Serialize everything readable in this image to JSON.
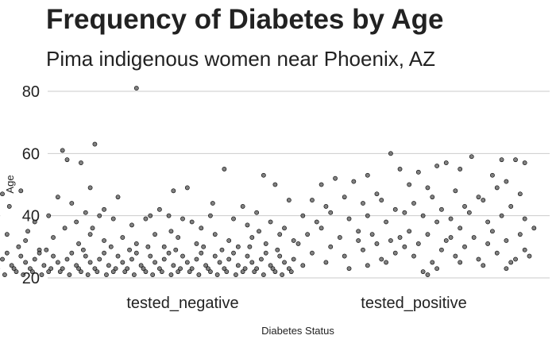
{
  "chart_data": {
    "type": "scatter",
    "title": "Frequency of Diabetes by Age",
    "subtitle": "Pima indigenous women near Phoenix, AZ",
    "xlabel": "Diabetes Status",
    "ylabel": "Age",
    "categories": [
      "tested_negative",
      "tested_positive"
    ],
    "ylim": [
      20,
      82
    ],
    "yticks": [
      20,
      40,
      60,
      80
    ],
    "grid": "horizontal",
    "series": [
      {
        "name": "tested_negative",
        "points": [
          [
            -0.34,
            60
          ],
          [
            -0.02,
            61
          ],
          [
            0.0,
            58
          ],
          [
            0.06,
            57
          ],
          [
            0.12,
            63
          ],
          [
            0.3,
            81
          ],
          [
            0.46,
            48
          ],
          [
            0.52,
            49
          ],
          [
            0.68,
            55
          ],
          [
            0.85,
            53
          ],
          [
            0.9,
            50
          ],
          [
            0.96,
            45
          ],
          [
            -0.28,
            47
          ],
          [
            -0.2,
            48
          ],
          [
            -0.25,
            43
          ],
          [
            -0.04,
            46
          ],
          [
            0.02,
            44
          ],
          [
            0.1,
            49
          ],
          [
            0.16,
            42
          ],
          [
            0.22,
            46
          ],
          [
            0.36,
            40
          ],
          [
            0.4,
            42
          ],
          [
            0.5,
            39
          ],
          [
            0.62,
            40
          ],
          [
            0.76,
            43
          ],
          [
            0.82,
            41
          ],
          [
            -0.4,
            33
          ],
          [
            -0.36,
            39
          ],
          [
            -0.3,
            40
          ],
          [
            -0.14,
            38
          ],
          [
            -0.08,
            40
          ],
          [
            -0.01,
            36
          ],
          [
            0.04,
            38
          ],
          [
            0.08,
            41
          ],
          [
            0.14,
            40
          ],
          [
            0.2,
            39
          ],
          [
            0.28,
            37
          ],
          [
            0.34,
            39
          ],
          [
            0.44,
            40
          ],
          [
            0.54,
            38
          ],
          [
            0.58,
            36
          ],
          [
            0.72,
            39
          ],
          [
            0.78,
            37
          ],
          [
            0.88,
            38
          ],
          [
            0.94,
            36
          ],
          [
            -0.42,
            30
          ],
          [
            -0.38,
            33
          ],
          [
            -0.33,
            31
          ],
          [
            -0.26,
            34
          ],
          [
            -0.18,
            32
          ],
          [
            -0.12,
            29
          ],
          [
            -0.06,
            33
          ],
          [
            0.05,
            31
          ],
          [
            0.1,
            34
          ],
          [
            0.16,
            32
          ],
          [
            0.24,
            33
          ],
          [
            0.3,
            31
          ],
          [
            0.38,
            34
          ],
          [
            0.42,
            30
          ],
          [
            0.48,
            33
          ],
          [
            0.56,
            31
          ],
          [
            0.64,
            34
          ],
          [
            0.7,
            32
          ],
          [
            0.74,
            30
          ],
          [
            0.8,
            33
          ],
          [
            0.86,
            31
          ],
          [
            0.92,
            34
          ],
          [
            0.98,
            32
          ],
          [
            -0.41,
            26
          ],
          [
            -0.39,
            28
          ],
          [
            -0.37,
            24
          ],
          [
            -0.35,
            27
          ],
          [
            -0.32,
            25
          ],
          [
            -0.3,
            23
          ],
          [
            -0.28,
            26
          ],
          [
            -0.26,
            28
          ],
          [
            -0.24,
            24
          ],
          [
            -0.22,
            22
          ],
          [
            -0.2,
            27
          ],
          [
            -0.18,
            25
          ],
          [
            -0.16,
            23
          ],
          [
            -0.14,
            26
          ],
          [
            -0.12,
            28
          ],
          [
            -0.1,
            24
          ],
          [
            -0.08,
            22
          ],
          [
            -0.06,
            27
          ],
          [
            -0.04,
            25
          ],
          [
            -0.02,
            23
          ],
          [
            0.0,
            26
          ],
          [
            0.02,
            28
          ],
          [
            0.04,
            24
          ],
          [
            0.06,
            22
          ],
          [
            0.08,
            27
          ],
          [
            0.1,
            25
          ],
          [
            0.12,
            23
          ],
          [
            0.14,
            26
          ],
          [
            0.16,
            28
          ],
          [
            0.18,
            24
          ],
          [
            0.2,
            22
          ],
          [
            0.22,
            27
          ],
          [
            0.24,
            25
          ],
          [
            0.26,
            23
          ],
          [
            0.28,
            26
          ],
          [
            0.3,
            28
          ],
          [
            0.32,
            24
          ],
          [
            0.34,
            22
          ],
          [
            0.36,
            27
          ],
          [
            0.38,
            25
          ],
          [
            0.4,
            23
          ],
          [
            0.42,
            26
          ],
          [
            0.44,
            28
          ],
          [
            0.46,
            24
          ],
          [
            0.48,
            22
          ],
          [
            0.5,
            27
          ],
          [
            0.52,
            25
          ],
          [
            0.54,
            23
          ],
          [
            0.56,
            26
          ],
          [
            0.58,
            28
          ],
          [
            0.6,
            24
          ],
          [
            0.62,
            22
          ],
          [
            0.64,
            27
          ],
          [
            0.66,
            25
          ],
          [
            0.68,
            23
          ],
          [
            0.7,
            26
          ],
          [
            0.72,
            28
          ],
          [
            0.74,
            24
          ],
          [
            0.76,
            22
          ],
          [
            0.78,
            27
          ],
          [
            0.8,
            25
          ],
          [
            0.82,
            23
          ],
          [
            0.84,
            26
          ],
          [
            0.86,
            28
          ],
          [
            0.88,
            24
          ],
          [
            0.9,
            22
          ],
          [
            0.92,
            27
          ],
          [
            0.94,
            25
          ],
          [
            0.96,
            23
          ],
          [
            0.98,
            26
          ],
          [
            -0.4,
            22
          ],
          [
            -0.36,
            21
          ],
          [
            -0.31,
            22
          ],
          [
            -0.27,
            21
          ],
          [
            -0.23,
            23
          ],
          [
            -0.19,
            21
          ],
          [
            -0.15,
            22
          ],
          [
            -0.11,
            21
          ],
          [
            -0.07,
            23
          ],
          [
            -0.03,
            22
          ],
          [
            0.01,
            21
          ],
          [
            0.05,
            23
          ],
          [
            0.09,
            21
          ],
          [
            0.13,
            22
          ],
          [
            0.17,
            21
          ],
          [
            0.21,
            23
          ],
          [
            0.25,
            22
          ],
          [
            0.29,
            21
          ],
          [
            0.33,
            23
          ],
          [
            0.37,
            21
          ],
          [
            0.41,
            22
          ],
          [
            0.45,
            21
          ],
          [
            0.49,
            23
          ],
          [
            0.53,
            22
          ],
          [
            0.57,
            21
          ],
          [
            0.61,
            23
          ],
          [
            0.65,
            21
          ],
          [
            0.69,
            22
          ],
          [
            0.73,
            21
          ],
          [
            0.77,
            23
          ],
          [
            0.81,
            22
          ],
          [
            0.85,
            21
          ],
          [
            0.89,
            23
          ],
          [
            0.93,
            21
          ],
          [
            0.97,
            22
          ],
          [
            -0.33,
            29
          ],
          [
            -0.21,
            30
          ],
          [
            -0.09,
            29
          ],
          [
            0.07,
            29
          ],
          [
            0.19,
            30
          ],
          [
            0.27,
            29
          ],
          [
            0.35,
            30
          ],
          [
            0.47,
            29
          ],
          [
            0.59,
            30
          ],
          [
            0.67,
            29
          ],
          [
            0.79,
            30
          ],
          [
            0.91,
            29
          ],
          [
            -0.17,
            35
          ],
          [
            0.11,
            36
          ],
          [
            0.45,
            35
          ],
          [
            0.63,
            44
          ],
          [
            0.83,
            35
          ]
        ]
      },
      {
        "name": "tested_positive",
        "points": [
          [
            1.4,
            60
          ],
          [
            1.75,
            59
          ],
          [
            1.6,
            56
          ],
          [
            1.88,
            58
          ],
          [
            1.94,
            58
          ],
          [
            1.98,
            57
          ],
          [
            1.3,
            53
          ],
          [
            1.44,
            55
          ],
          [
            1.52,
            54
          ],
          [
            1.64,
            57
          ],
          [
            1.7,
            55
          ],
          [
            1.84,
            53
          ],
          [
            1.9,
            51
          ],
          [
            1.1,
            50
          ],
          [
            1.16,
            52
          ],
          [
            1.24,
            51
          ],
          [
            1.34,
            47
          ],
          [
            1.48,
            50
          ],
          [
            1.56,
            49
          ],
          [
            1.68,
            48
          ],
          [
            1.78,
            46
          ],
          [
            1.86,
            49
          ],
          [
            1.96,
            47
          ],
          [
            1.06,
            45
          ],
          [
            1.12,
            43
          ],
          [
            1.2,
            46
          ],
          [
            1.28,
            44
          ],
          [
            1.36,
            45
          ],
          [
            1.42,
            42
          ],
          [
            1.5,
            44
          ],
          [
            1.58,
            46
          ],
          [
            1.62,
            42
          ],
          [
            1.72,
            43
          ],
          [
            1.8,
            45
          ],
          [
            1.92,
            43
          ],
          [
            1.02,
            40
          ],
          [
            1.08,
            38
          ],
          [
            1.14,
            41
          ],
          [
            1.22,
            39
          ],
          [
            1.3,
            40
          ],
          [
            1.38,
            38
          ],
          [
            1.46,
            41
          ],
          [
            1.54,
            40
          ],
          [
            1.6,
            38
          ],
          [
            1.66,
            39
          ],
          [
            1.74,
            41
          ],
          [
            1.82,
            38
          ],
          [
            1.88,
            40
          ],
          [
            1.98,
            39
          ],
          [
            1.04,
            34
          ],
          [
            1.1,
            36
          ],
          [
            1.18,
            33
          ],
          [
            1.26,
            35
          ],
          [
            1.32,
            34
          ],
          [
            1.4,
            32
          ],
          [
            1.44,
            33
          ],
          [
            1.48,
            35
          ],
          [
            1.52,
            31
          ],
          [
            1.56,
            34
          ],
          [
            1.64,
            32
          ],
          [
            1.7,
            36
          ],
          [
            1.76,
            33
          ],
          [
            1.84,
            35
          ],
          [
            1.9,
            32
          ],
          [
            1.96,
            34
          ],
          [
            2.02,
            36
          ],
          [
            1.0,
            31
          ],
          [
            1.06,
            28
          ],
          [
            1.14,
            30
          ],
          [
            1.2,
            27
          ],
          [
            1.28,
            29
          ],
          [
            1.36,
            26
          ],
          [
            1.42,
            28
          ],
          [
            1.46,
            30
          ],
          [
            1.5,
            27
          ],
          [
            1.58,
            25
          ],
          [
            1.62,
            29
          ],
          [
            1.68,
            27
          ],
          [
            1.72,
            30
          ],
          [
            1.78,
            26
          ],
          [
            1.86,
            28
          ],
          [
            1.92,
            25
          ],
          [
            1.98,
            29
          ],
          [
            1.02,
            24
          ],
          [
            1.12,
            25
          ],
          [
            1.22,
            23
          ],
          [
            1.3,
            24
          ],
          [
            1.38,
            25
          ],
          [
            1.54,
            22
          ],
          [
            1.6,
            23
          ],
          [
            1.7,
            25
          ],
          [
            1.8,
            24
          ],
          [
            1.9,
            23
          ],
          [
            1.56,
            21
          ],
          [
            1.26,
            32
          ],
          [
            1.66,
            33
          ],
          [
            1.94,
            26
          ],
          [
            1.34,
            31
          ],
          [
            1.82,
            31
          ],
          [
            2.0,
            27
          ]
        ]
      }
    ]
  }
}
